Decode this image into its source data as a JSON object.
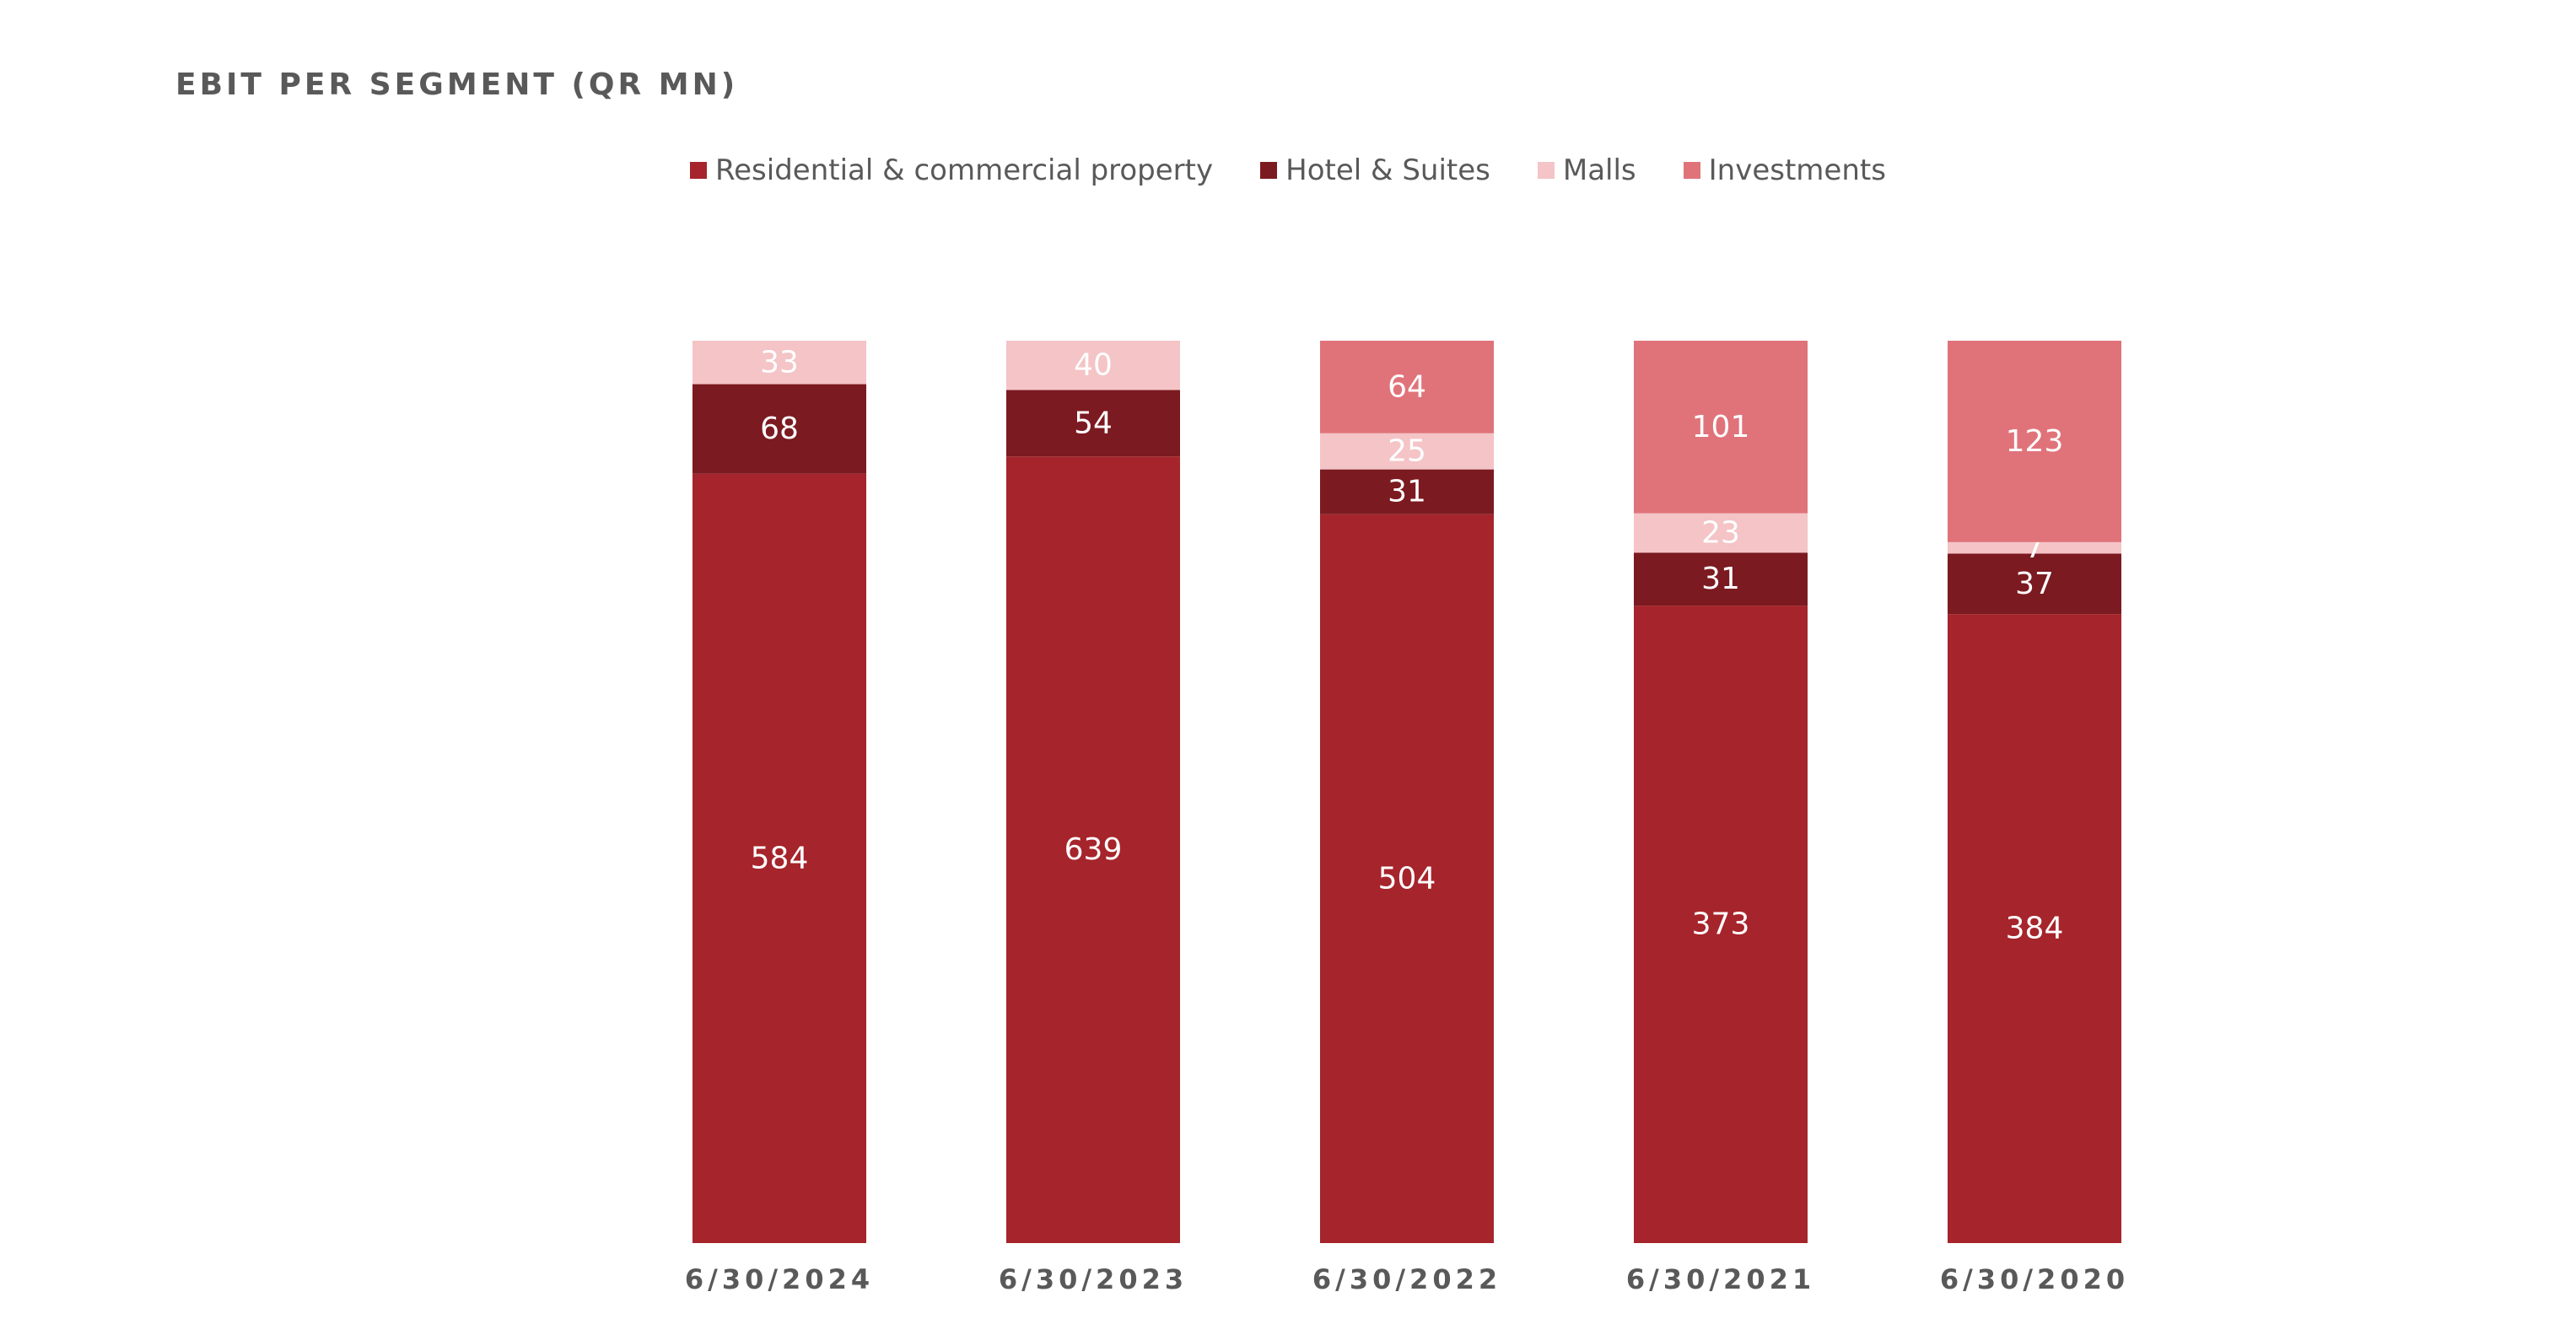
{
  "chart_data": {
    "type": "bar",
    "stacked": true,
    "normalized": true,
    "title": "EBIT PER SEGMENT (QR MN)",
    "categories": [
      "6/30/2024",
      "6/30/2023",
      "6/30/2022",
      "6/30/2021",
      "6/30/2020"
    ],
    "series": [
      {
        "name": "Residential & commercial property",
        "color": "#A6242B",
        "values": [
          584,
          639,
          504,
          373,
          384
        ]
      },
      {
        "name": "Hotel & Suites",
        "color": "#7B1A20",
        "values": [
          68,
          54,
          31,
          31,
          37
        ]
      },
      {
        "name": "Malls",
        "color": "#F4C4C7",
        "values": [
          33,
          40,
          25,
          23,
          7
        ]
      },
      {
        "name": "Investments",
        "color": "#E0737A",
        "values": [
          null,
          null,
          64,
          101,
          123
        ]
      }
    ],
    "legend_position": "top-center",
    "grid": false
  }
}
